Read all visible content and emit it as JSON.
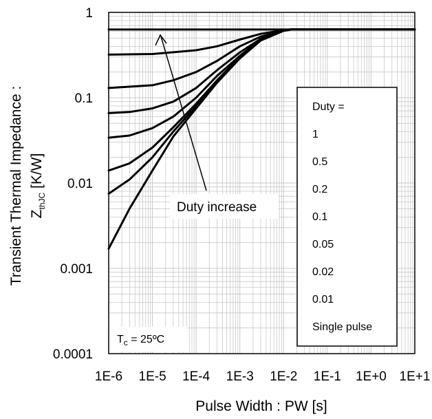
{
  "chart_data": {
    "type": "line",
    "x_scale": "log",
    "y_scale": "log",
    "xlim": [
      1e-06,
      10
    ],
    "ylim": [
      0.0001,
      1
    ],
    "grid": true,
    "x_ticks": [
      "1E-6",
      "1E-5",
      "1E-4",
      "1E-3",
      "1E-2",
      "1E-1",
      "1E+0",
      "1E+1"
    ],
    "y_ticks": [
      "1",
      "0.1",
      "0.01",
      "0.001",
      "0.0001"
    ],
    "xlabel": "Pulse Width : PW [s]",
    "ylabel_line1": "Transient Thermal Impedance :",
    "ylabel_line2_main": "Z",
    "ylabel_line2_sub": "thJC",
    "ylabel_line2_unit": " [K/W]",
    "legend_title": "Duty =",
    "legend_position": "right",
    "legend_entries": [
      "1",
      "0.5",
      "0.2",
      "0.1",
      "0.05",
      "0.02",
      "0.01",
      "Single pulse"
    ],
    "annotation": "Duty increase",
    "condition_main": "T",
    "condition_sub": "c",
    "condition_rest": " = 25ºC",
    "series": [
      {
        "x": [
          1e-06,
          10
        ],
        "y": [
          0.63,
          0.63
        ]
      },
      {
        "x": [
          1e-06,
          1e-05,
          0.0001,
          0.0003,
          0.001,
          0.003,
          0.01,
          0.013,
          10
        ],
        "y": [
          0.32,
          0.325,
          0.36,
          0.4,
          0.48,
          0.56,
          0.62,
          0.63,
          0.63
        ]
      },
      {
        "x": [
          1e-06,
          1e-05,
          3e-05,
          0.0001,
          0.0003,
          0.001,
          0.003,
          0.01,
          0.014,
          10
        ],
        "y": [
          0.13,
          0.14,
          0.16,
          0.2,
          0.27,
          0.4,
          0.52,
          0.61,
          0.63,
          0.63
        ]
      },
      {
        "x": [
          1e-06,
          3e-06,
          1e-05,
          3e-05,
          0.0001,
          0.0003,
          0.001,
          0.003,
          0.01,
          0.015,
          10
        ],
        "y": [
          0.066,
          0.068,
          0.075,
          0.09,
          0.13,
          0.21,
          0.34,
          0.49,
          0.61,
          0.63,
          0.63
        ]
      },
      {
        "x": [
          1e-06,
          3e-06,
          1e-05,
          3e-05,
          0.0001,
          0.0003,
          0.001,
          0.003,
          0.01,
          0.015,
          10
        ],
        "y": [
          0.034,
          0.036,
          0.044,
          0.06,
          0.1,
          0.18,
          0.31,
          0.48,
          0.61,
          0.63,
          0.63
        ]
      },
      {
        "x": [
          1e-06,
          3e-06,
          1e-05,
          3e-05,
          0.0001,
          0.0003,
          0.001,
          0.003,
          0.01,
          0.015,
          10
        ],
        "y": [
          0.014,
          0.017,
          0.026,
          0.045,
          0.085,
          0.16,
          0.3,
          0.47,
          0.61,
          0.63,
          0.63
        ]
      },
      {
        "x": [
          1e-06,
          3e-06,
          1e-05,
          3e-05,
          0.0001,
          0.0003,
          0.001,
          0.003,
          0.01,
          0.015,
          10
        ],
        "y": [
          0.0075,
          0.011,
          0.02,
          0.04,
          0.08,
          0.155,
          0.29,
          0.47,
          0.61,
          0.63,
          0.63
        ]
      },
      {
        "x": [
          1e-06,
          3e-06,
          1e-05,
          3e-05,
          0.0001,
          0.0003,
          0.001,
          0.003,
          0.01,
          0.015,
          10
        ],
        "y": [
          0.0017,
          0.005,
          0.014,
          0.035,
          0.075,
          0.15,
          0.29,
          0.47,
          0.61,
          0.63,
          0.63
        ]
      }
    ]
  }
}
